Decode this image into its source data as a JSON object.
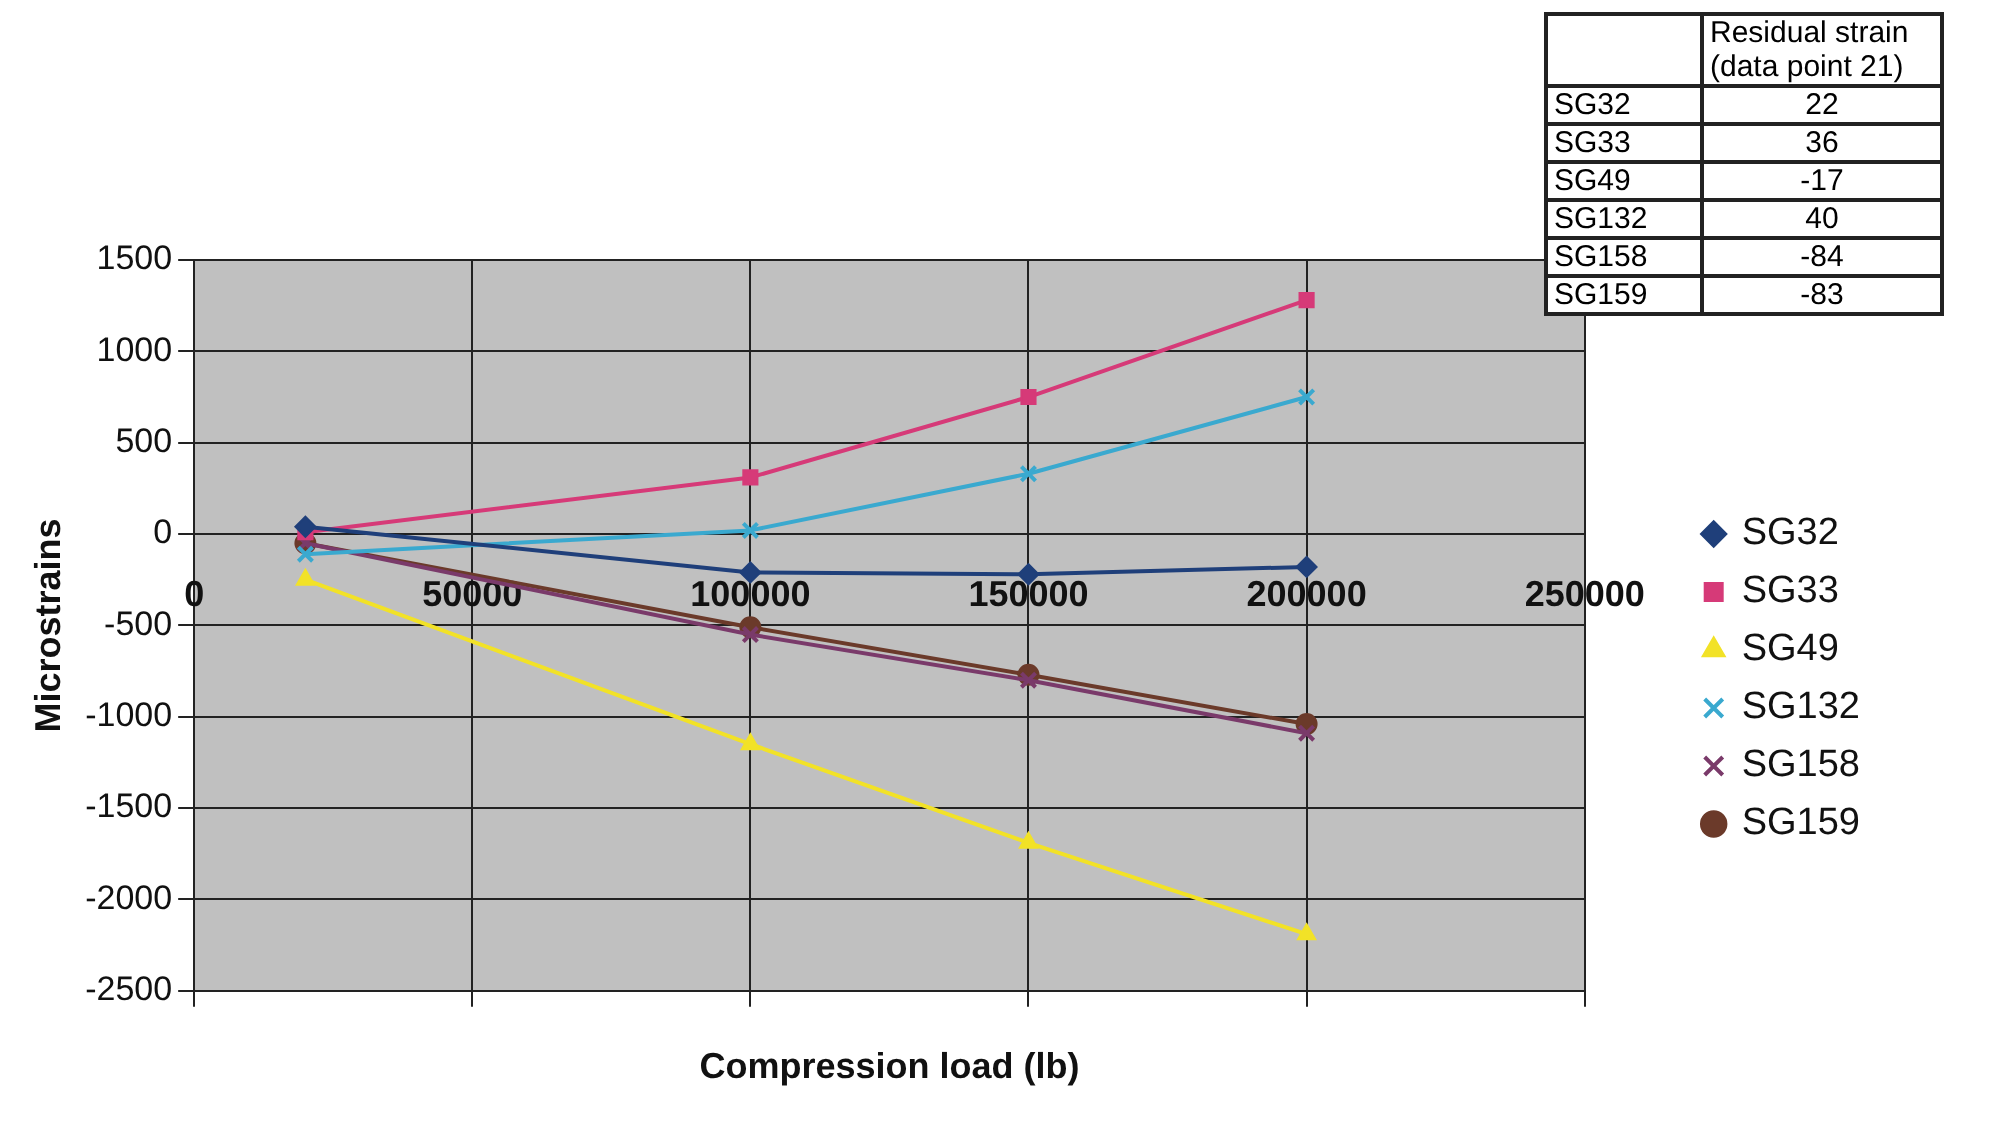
{
  "chart_data": [
    {
      "type": "line",
      "xlabel": "Compression load (lb)",
      "ylabel": "Microstrains",
      "x": [
        20000,
        100000,
        150000,
        200000
      ],
      "series": [
        {
          "name": "SG32",
          "color": "#1f3f7a",
          "marker": "diamond",
          "values": [
            40,
            -210,
            -220,
            -180
          ]
        },
        {
          "name": "SG33",
          "color": "#d63a78",
          "marker": "square",
          "values": [
            10,
            310,
            750,
            1280
          ]
        },
        {
          "name": "SG49",
          "color": "#f2e227",
          "marker": "triangle",
          "values": [
            -250,
            -1150,
            -1690,
            -2190
          ]
        },
        {
          "name": "SG132",
          "color": "#3aa9cf",
          "marker": "cross",
          "values": [
            -110,
            20,
            330,
            750
          ]
        },
        {
          "name": "SG158",
          "color": "#7a3a6a",
          "marker": "cross",
          "values": [
            -50,
            -550,
            -800,
            -1090
          ]
        },
        {
          "name": "SG159",
          "color": "#6b3a2a",
          "marker": "circle",
          "values": [
            -50,
            -510,
            -770,
            -1040
          ]
        }
      ],
      "xlim": [
        0,
        250000
      ],
      "xticks": [
        0,
        50000,
        100000,
        150000,
        200000,
        250000
      ],
      "ylim": [
        -2500,
        1500
      ],
      "yticks": [
        -2500,
        -2000,
        -1500,
        -1000,
        -500,
        0,
        500,
        1000,
        1500
      ],
      "grid": true,
      "legend": "right",
      "line_style": "solid"
    },
    {
      "type": "other",
      "title": "Residual strain (data point 21)",
      "categories": [
        "SG32",
        "SG33",
        "SG49",
        "SG132",
        "SG158",
        "SG159"
      ],
      "values": [
        22,
        36,
        -17,
        40,
        -84,
        -83
      ],
      "data_labels": true
    }
  ]
}
